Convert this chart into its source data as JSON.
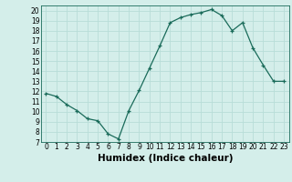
{
  "x": [
    0,
    1,
    2,
    3,
    4,
    5,
    6,
    7,
    8,
    9,
    10,
    11,
    12,
    13,
    14,
    15,
    16,
    17,
    18,
    19,
    20,
    21,
    22,
    23
  ],
  "y": [
    11.8,
    11.5,
    10.7,
    10.1,
    9.3,
    9.1,
    7.8,
    7.3,
    10.1,
    12.1,
    14.3,
    16.5,
    18.8,
    19.3,
    19.6,
    19.8,
    20.1,
    19.5,
    18.0,
    18.8,
    16.3,
    14.6,
    13.0,
    13.0
  ],
  "line_color": "#1a6b5a",
  "marker": "+",
  "bg_color": "#d4eeea",
  "grid_color": "#b8ddd8",
  "xlabel": "Humidex (Indice chaleur)",
  "xlim": [
    -0.5,
    23.5
  ],
  "ylim": [
    7,
    20.5
  ],
  "yticks": [
    7,
    8,
    9,
    10,
    11,
    12,
    13,
    14,
    15,
    16,
    17,
    18,
    19,
    20
  ],
  "xticks": [
    0,
    1,
    2,
    3,
    4,
    5,
    6,
    7,
    8,
    9,
    10,
    11,
    12,
    13,
    14,
    15,
    16,
    17,
    18,
    19,
    20,
    21,
    22,
    23
  ],
  "tick_fontsize": 5.5,
  "xlabel_fontsize": 7.5,
  "marker_size": 3,
  "line_width": 0.9
}
